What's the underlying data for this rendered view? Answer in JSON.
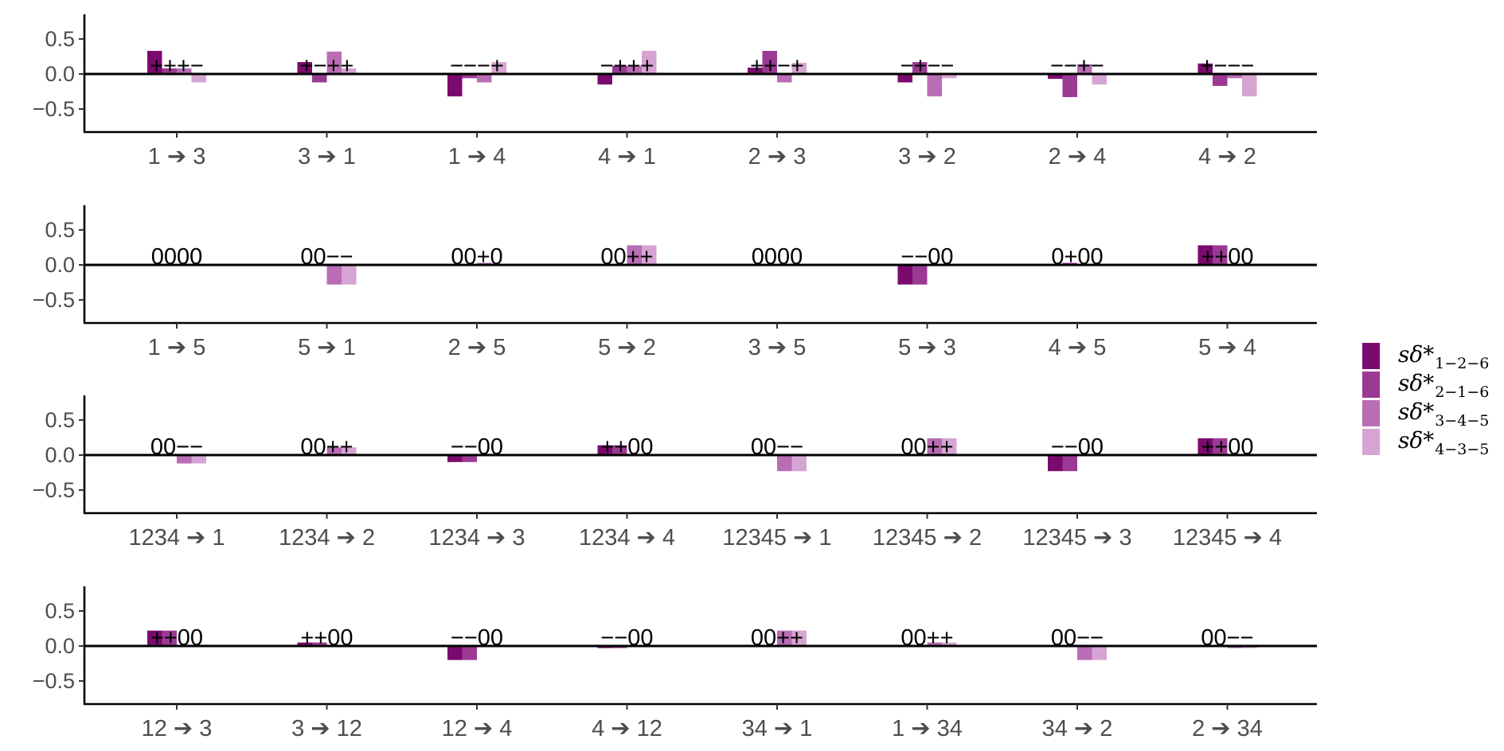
{
  "colors": [
    "#7B0A6E",
    "#9A3A93",
    "#B86DB5",
    "#D6A4D2"
  ],
  "legend": [
    {
      "base": "sδ*",
      "sub": "1−2−6"
    },
    {
      "base": "sδ*",
      "sub": "2−1−6"
    },
    {
      "base": "sδ*",
      "sub": "3−4−5"
    },
    {
      "base": "sδ*",
      "sub": "4−3−5"
    }
  ],
  "chart_data": [
    {
      "type": "bar",
      "ylim": [
        -0.85,
        0.85
      ],
      "yticks": [
        0.5,
        0.0,
        -0.5
      ],
      "ytick_labels": [
        "0.5",
        "0.0",
        "−0.5"
      ],
      "categories": [
        "1 ➔ 3",
        "3 ➔ 1",
        "1 ➔ 4",
        "4 ➔ 1",
        "2 ➔ 3",
        "3 ➔ 2",
        "2 ➔ 4",
        "4 ➔ 2"
      ],
      "values": [
        [
          0.33,
          0.08,
          0.08,
          -0.12
        ],
        [
          0.17,
          -0.12,
          0.32,
          0.08
        ],
        [
          -0.32,
          -0.06,
          -0.12,
          0.17
        ],
        [
          -0.15,
          0.12,
          0.12,
          0.33
        ],
        [
          0.09,
          0.33,
          -0.12,
          0.16
        ],
        [
          -0.12,
          0.17,
          -0.32,
          -0.06
        ],
        [
          -0.07,
          -0.33,
          0.14,
          -0.15
        ],
        [
          0.15,
          -0.17,
          -0.06,
          -0.32
        ]
      ],
      "signs": [
        "+++−",
        "+−++",
        "−−−+",
        "−+++",
        "++−+",
        "−+−−",
        "−−+−",
        "+−−−"
      ]
    },
    {
      "type": "bar",
      "ylim": [
        -0.85,
        0.85
      ],
      "yticks": [
        0.5,
        0.0,
        -0.5
      ],
      "ytick_labels": [
        "0.5",
        "0.0",
        "−0.5"
      ],
      "categories": [
        "1 ➔ 5",
        "5 ➔ 1",
        "2 ➔ 5",
        "5 ➔ 2",
        "3 ➔ 5",
        "5 ➔ 3",
        "4 ➔ 5",
        "5 ➔ 4"
      ],
      "values": [
        [
          0,
          0,
          0,
          0
        ],
        [
          0,
          0,
          -0.28,
          -0.28
        ],
        [
          0,
          0,
          0.03,
          0
        ],
        [
          0,
          0,
          0.28,
          0.28
        ],
        [
          0,
          0,
          0,
          0
        ],
        [
          -0.28,
          -0.28,
          0,
          0
        ],
        [
          0,
          0.03,
          0,
          0
        ],
        [
          0.28,
          0.28,
          0,
          0
        ]
      ],
      "signs": [
        "0000",
        "00−−",
        "00+0",
        "00++",
        "0000",
        "−−00",
        "0+00",
        "++00"
      ]
    },
    {
      "type": "bar",
      "ylim": [
        -0.85,
        0.85
      ],
      "yticks": [
        0.5,
        0.0,
        -0.5
      ],
      "ytick_labels": [
        "0.5",
        "0.0",
        "−0.5"
      ],
      "categories": [
        "1234 ➔ 1",
        "1234 ➔ 2",
        "1234 ➔ 3",
        "1234 ➔ 4",
        "12345 ➔ 1",
        "12345 ➔ 2",
        "12345 ➔ 3",
        "12345 ➔ 4"
      ],
      "values": [
        [
          0,
          0,
          -0.12,
          -0.12
        ],
        [
          0,
          0,
          0.11,
          0.11
        ],
        [
          -0.1,
          -0.1,
          0,
          0
        ],
        [
          0.14,
          0.14,
          0,
          0
        ],
        [
          0,
          0,
          -0.23,
          -0.23
        ],
        [
          0,
          0,
          0.24,
          0.24
        ],
        [
          -0.23,
          -0.23,
          0,
          0
        ],
        [
          0.24,
          0.24,
          0,
          0
        ]
      ],
      "signs": [
        "00−−",
        "00++",
        "−−00",
        "++00",
        "00−−",
        "00++",
        "−−00",
        "++00"
      ]
    },
    {
      "type": "bar",
      "ylim": [
        -0.85,
        0.85
      ],
      "yticks": [
        0.5,
        0.0,
        -0.5
      ],
      "ytick_labels": [
        "0.5",
        "0.0",
        "−0.5"
      ],
      "categories": [
        "12 ➔ 3",
        "3 ➔ 12",
        "12 ➔ 4",
        "4 ➔ 12",
        "34 ➔ 1",
        "1 ➔ 34",
        "34 ➔ 2",
        "2 ➔ 34"
      ],
      "values": [
        [
          0.22,
          0.22,
          0,
          0
        ],
        [
          0.05,
          0.05,
          0,
          0
        ],
        [
          -0.2,
          -0.2,
          0,
          0
        ],
        [
          -0.03,
          -0.03,
          0,
          0
        ],
        [
          0,
          0,
          0.22,
          0.22
        ],
        [
          0,
          0,
          0.05,
          0.05
        ],
        [
          0,
          0,
          -0.2,
          -0.2
        ],
        [
          0,
          0,
          -0.03,
          -0.03
        ]
      ],
      "signs": [
        "++00",
        "++00",
        "−−00",
        "−−00",
        "00++",
        "00++",
        "00−−",
        "00−−"
      ]
    }
  ]
}
